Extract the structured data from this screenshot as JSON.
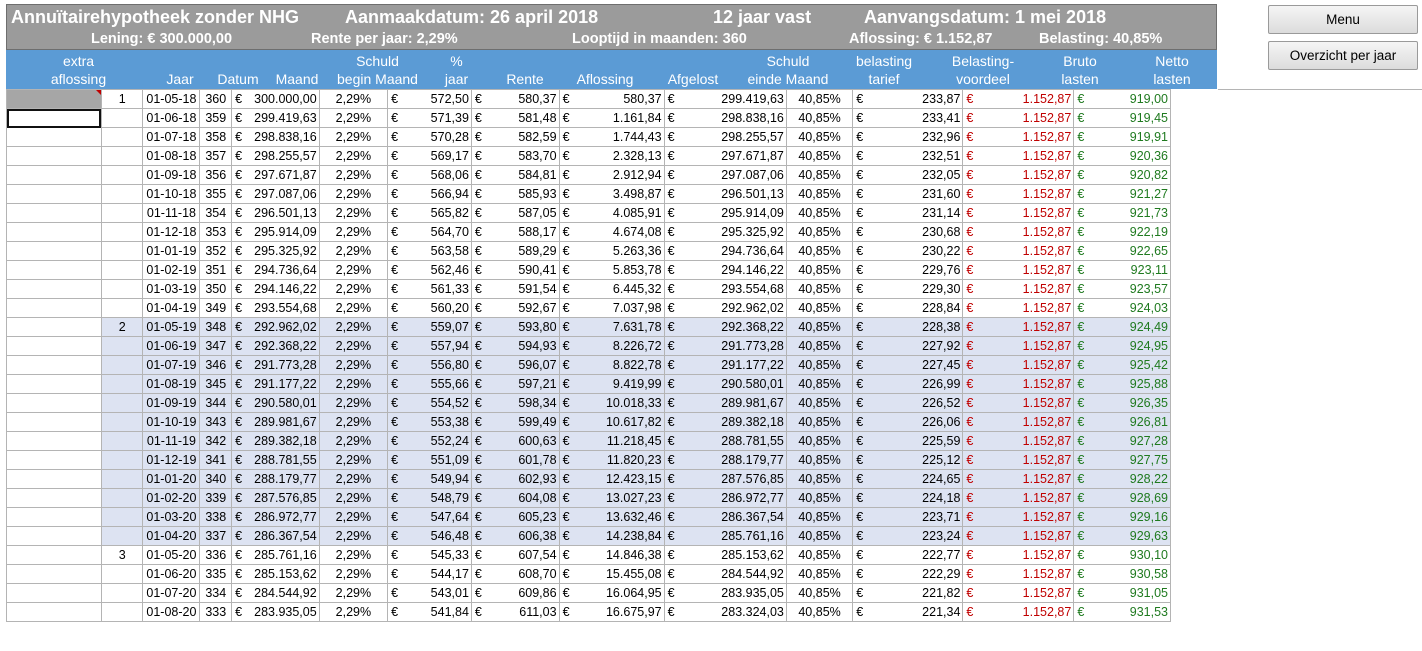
{
  "banner": {
    "title": "Annuïtairehypotheek zonder NHG",
    "aanmaakdatum": "Aanmaakdatum: 26 april 2018",
    "vast": "12 jaar vast",
    "aanvangsdatum": "Aanvangsdatum: 1 mei 2018",
    "lening": "Lening:  €   300.000,00",
    "rente": "Rente per jaar:  2,29%",
    "looptijd": "Looptijd in maanden:  360",
    "aflossing": "Aflossing:  €  1.152,87",
    "belasting": "Belasting:  40,85%"
  },
  "headers": {
    "extra": [
      "extra",
      "aflossing"
    ],
    "jaar": "Jaar",
    "datum": "Datum",
    "maand": "Maand",
    "schuld_begin": [
      "Schuld",
      "begin Maand"
    ],
    "pct": [
      "%",
      "jaar"
    ],
    "rente": "Rente",
    "aflossing": "Aflossing",
    "afgelost": "Afgelost",
    "schuld_einde": [
      "Schuld",
      "einde Maand"
    ],
    "tarief": [
      "belasting",
      "tarief"
    ],
    "voordeel": [
      "Belasting-",
      "voordeel"
    ],
    "bruto": [
      "Bruto",
      "lasten"
    ],
    "netto": [
      "Netto",
      "lasten"
    ]
  },
  "buttons": {
    "menu": "Menu",
    "overzicht": "Overzicht per jaar"
  },
  "currency": "€",
  "rows": [
    {
      "jaar": "1",
      "datum": "01-05-18",
      "maand": "360",
      "begin": "300.000,00",
      "pct": "2,29%",
      "rente": "572,50",
      "aflossing": "580,37",
      "afgelost": "580,37",
      "einde": "299.419,63",
      "tarief": "40,85%",
      "voordeel": "233,87",
      "bruto": "1.152,87",
      "netto": "919,00"
    },
    {
      "jaar": "",
      "datum": "01-06-18",
      "maand": "359",
      "begin": "299.419,63",
      "pct": "2,29%",
      "rente": "571,39",
      "aflossing": "581,48",
      "afgelost": "1.161,84",
      "einde": "298.838,16",
      "tarief": "40,85%",
      "voordeel": "233,41",
      "bruto": "1.152,87",
      "netto": "919,45"
    },
    {
      "jaar": "",
      "datum": "01-07-18",
      "maand": "358",
      "begin": "298.838,16",
      "pct": "2,29%",
      "rente": "570,28",
      "aflossing": "582,59",
      "afgelost": "1.744,43",
      "einde": "298.255,57",
      "tarief": "40,85%",
      "voordeel": "232,96",
      "bruto": "1.152,87",
      "netto": "919,91"
    },
    {
      "jaar": "",
      "datum": "01-08-18",
      "maand": "357",
      "begin": "298.255,57",
      "pct": "2,29%",
      "rente": "569,17",
      "aflossing": "583,70",
      "afgelost": "2.328,13",
      "einde": "297.671,87",
      "tarief": "40,85%",
      "voordeel": "232,51",
      "bruto": "1.152,87",
      "netto": "920,36"
    },
    {
      "jaar": "",
      "datum": "01-09-18",
      "maand": "356",
      "begin": "297.671,87",
      "pct": "2,29%",
      "rente": "568,06",
      "aflossing": "584,81",
      "afgelost": "2.912,94",
      "einde": "297.087,06",
      "tarief": "40,85%",
      "voordeel": "232,05",
      "bruto": "1.152,87",
      "netto": "920,82"
    },
    {
      "jaar": "",
      "datum": "01-10-18",
      "maand": "355",
      "begin": "297.087,06",
      "pct": "2,29%",
      "rente": "566,94",
      "aflossing": "585,93",
      "afgelost": "3.498,87",
      "einde": "296.501,13",
      "tarief": "40,85%",
      "voordeel": "231,60",
      "bruto": "1.152,87",
      "netto": "921,27"
    },
    {
      "jaar": "",
      "datum": "01-11-18",
      "maand": "354",
      "begin": "296.501,13",
      "pct": "2,29%",
      "rente": "565,82",
      "aflossing": "587,05",
      "afgelost": "4.085,91",
      "einde": "295.914,09",
      "tarief": "40,85%",
      "voordeel": "231,14",
      "bruto": "1.152,87",
      "netto": "921,73"
    },
    {
      "jaar": "",
      "datum": "01-12-18",
      "maand": "353",
      "begin": "295.914,09",
      "pct": "2,29%",
      "rente": "564,70",
      "aflossing": "588,17",
      "afgelost": "4.674,08",
      "einde": "295.325,92",
      "tarief": "40,85%",
      "voordeel": "230,68",
      "bruto": "1.152,87",
      "netto": "922,19"
    },
    {
      "jaar": "",
      "datum": "01-01-19",
      "maand": "352",
      "begin": "295.325,92",
      "pct": "2,29%",
      "rente": "563,58",
      "aflossing": "589,29",
      "afgelost": "5.263,36",
      "einde": "294.736,64",
      "tarief": "40,85%",
      "voordeel": "230,22",
      "bruto": "1.152,87",
      "netto": "922,65"
    },
    {
      "jaar": "",
      "datum": "01-02-19",
      "maand": "351",
      "begin": "294.736,64",
      "pct": "2,29%",
      "rente": "562,46",
      "aflossing": "590,41",
      "afgelost": "5.853,78",
      "einde": "294.146,22",
      "tarief": "40,85%",
      "voordeel": "229,76",
      "bruto": "1.152,87",
      "netto": "923,11"
    },
    {
      "jaar": "",
      "datum": "01-03-19",
      "maand": "350",
      "begin": "294.146,22",
      "pct": "2,29%",
      "rente": "561,33",
      "aflossing": "591,54",
      "afgelost": "6.445,32",
      "einde": "293.554,68",
      "tarief": "40,85%",
      "voordeel": "229,30",
      "bruto": "1.152,87",
      "netto": "923,57"
    },
    {
      "jaar": "",
      "datum": "01-04-19",
      "maand": "349",
      "begin": "293.554,68",
      "pct": "2,29%",
      "rente": "560,20",
      "aflossing": "592,67",
      "afgelost": "7.037,98",
      "einde": "292.962,02",
      "tarief": "40,85%",
      "voordeel": "228,84",
      "bruto": "1.152,87",
      "netto": "924,03"
    },
    {
      "jaar": "2",
      "datum": "01-05-19",
      "maand": "348",
      "begin": "292.962,02",
      "pct": "2,29%",
      "rente": "559,07",
      "aflossing": "593,80",
      "afgelost": "7.631,78",
      "einde": "292.368,22",
      "tarief": "40,85%",
      "voordeel": "228,38",
      "bruto": "1.152,87",
      "netto": "924,49"
    },
    {
      "jaar": "",
      "datum": "01-06-19",
      "maand": "347",
      "begin": "292.368,22",
      "pct": "2,29%",
      "rente": "557,94",
      "aflossing": "594,93",
      "afgelost": "8.226,72",
      "einde": "291.773,28",
      "tarief": "40,85%",
      "voordeel": "227,92",
      "bruto": "1.152,87",
      "netto": "924,95"
    },
    {
      "jaar": "",
      "datum": "01-07-19",
      "maand": "346",
      "begin": "291.773,28",
      "pct": "2,29%",
      "rente": "556,80",
      "aflossing": "596,07",
      "afgelost": "8.822,78",
      "einde": "291.177,22",
      "tarief": "40,85%",
      "voordeel": "227,45",
      "bruto": "1.152,87",
      "netto": "925,42"
    },
    {
      "jaar": "",
      "datum": "01-08-19",
      "maand": "345",
      "begin": "291.177,22",
      "pct": "2,29%",
      "rente": "555,66",
      "aflossing": "597,21",
      "afgelost": "9.419,99",
      "einde": "290.580,01",
      "tarief": "40,85%",
      "voordeel": "226,99",
      "bruto": "1.152,87",
      "netto": "925,88"
    },
    {
      "jaar": "",
      "datum": "01-09-19",
      "maand": "344",
      "begin": "290.580,01",
      "pct": "2,29%",
      "rente": "554,52",
      "aflossing": "598,34",
      "afgelost": "10.018,33",
      "einde": "289.981,67",
      "tarief": "40,85%",
      "voordeel": "226,52",
      "bruto": "1.152,87",
      "netto": "926,35"
    },
    {
      "jaar": "",
      "datum": "01-10-19",
      "maand": "343",
      "begin": "289.981,67",
      "pct": "2,29%",
      "rente": "553,38",
      "aflossing": "599,49",
      "afgelost": "10.617,82",
      "einde": "289.382,18",
      "tarief": "40,85%",
      "voordeel": "226,06",
      "bruto": "1.152,87",
      "netto": "926,81"
    },
    {
      "jaar": "",
      "datum": "01-11-19",
      "maand": "342",
      "begin": "289.382,18",
      "pct": "2,29%",
      "rente": "552,24",
      "aflossing": "600,63",
      "afgelost": "11.218,45",
      "einde": "288.781,55",
      "tarief": "40,85%",
      "voordeel": "225,59",
      "bruto": "1.152,87",
      "netto": "927,28"
    },
    {
      "jaar": "",
      "datum": "01-12-19",
      "maand": "341",
      "begin": "288.781,55",
      "pct": "2,29%",
      "rente": "551,09",
      "aflossing": "601,78",
      "afgelost": "11.820,23",
      "einde": "288.179,77",
      "tarief": "40,85%",
      "voordeel": "225,12",
      "bruto": "1.152,87",
      "netto": "927,75"
    },
    {
      "jaar": "",
      "datum": "01-01-20",
      "maand": "340",
      "begin": "288.179,77",
      "pct": "2,29%",
      "rente": "549,94",
      "aflossing": "602,93",
      "afgelost": "12.423,15",
      "einde": "287.576,85",
      "tarief": "40,85%",
      "voordeel": "224,65",
      "bruto": "1.152,87",
      "netto": "928,22"
    },
    {
      "jaar": "",
      "datum": "01-02-20",
      "maand": "339",
      "begin": "287.576,85",
      "pct": "2,29%",
      "rente": "548,79",
      "aflossing": "604,08",
      "afgelost": "13.027,23",
      "einde": "286.972,77",
      "tarief": "40,85%",
      "voordeel": "224,18",
      "bruto": "1.152,87",
      "netto": "928,69"
    },
    {
      "jaar": "",
      "datum": "01-03-20",
      "maand": "338",
      "begin": "286.972,77",
      "pct": "2,29%",
      "rente": "547,64",
      "aflossing": "605,23",
      "afgelost": "13.632,46",
      "einde": "286.367,54",
      "tarief": "40,85%",
      "voordeel": "223,71",
      "bruto": "1.152,87",
      "netto": "929,16"
    },
    {
      "jaar": "",
      "datum": "01-04-20",
      "maand": "337",
      "begin": "286.367,54",
      "pct": "2,29%",
      "rente": "546,48",
      "aflossing": "606,38",
      "afgelost": "14.238,84",
      "einde": "285.761,16",
      "tarief": "40,85%",
      "voordeel": "223,24",
      "bruto": "1.152,87",
      "netto": "929,63"
    },
    {
      "jaar": "3",
      "datum": "01-05-20",
      "maand": "336",
      "begin": "285.761,16",
      "pct": "2,29%",
      "rente": "545,33",
      "aflossing": "607,54",
      "afgelost": "14.846,38",
      "einde": "285.153,62",
      "tarief": "40,85%",
      "voordeel": "222,77",
      "bruto": "1.152,87",
      "netto": "930,10"
    },
    {
      "jaar": "",
      "datum": "01-06-20",
      "maand": "335",
      "begin": "285.153,62",
      "pct": "2,29%",
      "rente": "544,17",
      "aflossing": "608,70",
      "afgelost": "15.455,08",
      "einde": "284.544,92",
      "tarief": "40,85%",
      "voordeel": "222,29",
      "bruto": "1.152,87",
      "netto": "930,58"
    },
    {
      "jaar": "",
      "datum": "01-07-20",
      "maand": "334",
      "begin": "284.544,92",
      "pct": "2,29%",
      "rente": "543,01",
      "aflossing": "609,86",
      "afgelost": "16.064,95",
      "einde": "283.935,05",
      "tarief": "40,85%",
      "voordeel": "221,82",
      "bruto": "1.152,87",
      "netto": "931,05"
    },
    {
      "jaar": "",
      "datum": "01-08-20",
      "maand": "333",
      "begin": "283.935,05",
      "pct": "2,29%",
      "rente": "541,84",
      "aflossing": "611,03",
      "afgelost": "16.675,97",
      "einde": "283.324,03",
      "tarief": "40,85%",
      "voordeel": "221,34",
      "bruto": "1.152,87",
      "netto": "931,53"
    }
  ]
}
